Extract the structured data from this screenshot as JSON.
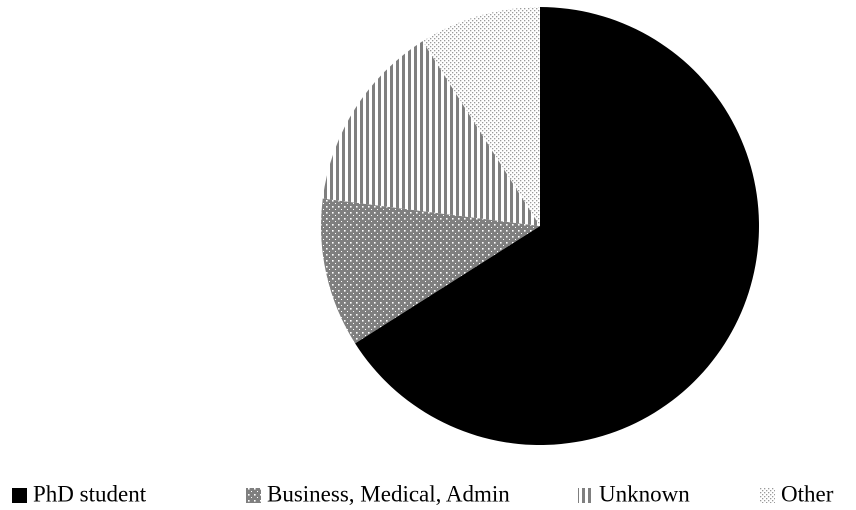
{
  "chart_data": {
    "type": "pie",
    "categories": [
      "PhD student",
      "Business, Medical, Admin",
      "Unknown",
      "Other"
    ],
    "values": [
      66,
      11,
      14,
      9
    ],
    "colors": [
      "#000000",
      "#7f7f7f",
      "#7f7f7f",
      "#9a9a9a"
    ],
    "legend": "bottom"
  }
}
